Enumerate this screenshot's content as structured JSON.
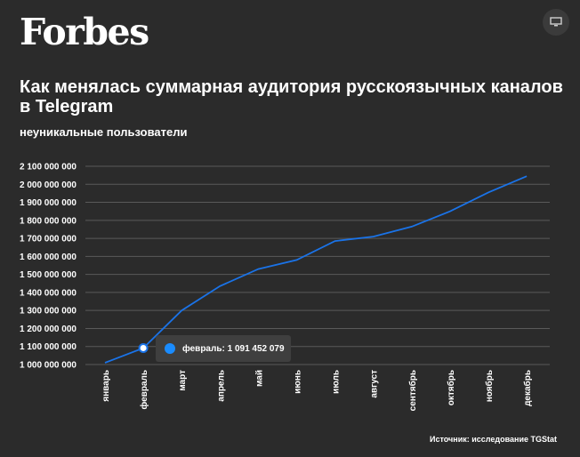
{
  "header": {
    "logo_text": "Forbes",
    "screen_icon": "monitor-icon"
  },
  "title": "Как менялась суммарная аудитория русскоязычных каналов в Telegram",
  "subtitle": "неуникальные пользователи",
  "tooltip": {
    "text": "февраль: 1 091 452 079",
    "dot_color": "#1a8cff"
  },
  "source": "Источник: исследование TGStat",
  "colors": {
    "background": "#2b2b2b",
    "line": "#1a73e8",
    "grid": "#5a5a5a",
    "text": "#ffffff"
  },
  "chart_data": {
    "type": "line",
    "categories": [
      "январь",
      "февраль",
      "март",
      "апрель",
      "май",
      "июнь",
      "июль",
      "август",
      "сентябрь",
      "октябрь",
      "ноябрь",
      "декабрь"
    ],
    "series": [
      {
        "values": [
          1010000000,
          1091452079,
          1300000000,
          1435000000,
          1530000000,
          1580000000,
          1685000000,
          1710000000,
          1765000000,
          1850000000,
          1955000000,
          2045000000
        ]
      }
    ],
    "y_ticks": [
      "2 100 000 000",
      "2 000 000 000",
      "1 900 000 000",
      "1 800 000 000",
      "1 700 000 000",
      "1 600 000 000",
      "1 500 000 000",
      "1 400 000 000",
      "1 300 000 000",
      "1 200 000 000",
      "1 100 000 000",
      "1 000 000 000"
    ],
    "ylim": [
      1000000000,
      2100000000
    ],
    "highlight_index": 1,
    "grid": true,
    "xlabel": "",
    "ylabel": ""
  }
}
